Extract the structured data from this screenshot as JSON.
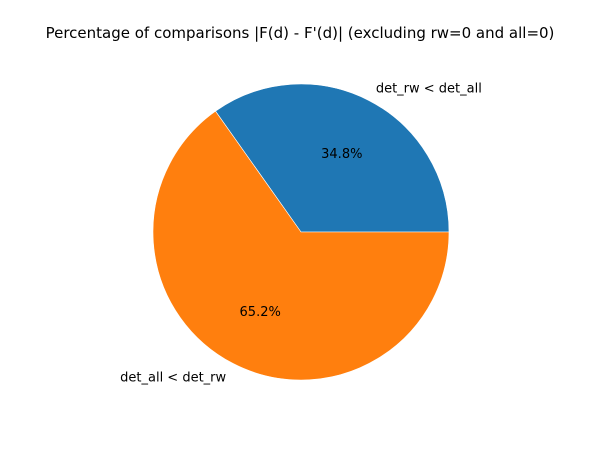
{
  "chart_data": {
    "type": "pie",
    "title": "Percentage of comparisons |F(d) - F'(d)| (excluding rw=0 and all=0)",
    "slices": [
      {
        "label": "det_rw < det_all",
        "value": 34.8,
        "pct_label": "34.8%",
        "color": "#1f77b4"
      },
      {
        "label": "det_all < det_rw",
        "value": 65.2,
        "pct_label": "65.2%",
        "color": "#ff7f0e"
      }
    ],
    "start_angle_deg": 0,
    "direction": "counterclockwise"
  }
}
